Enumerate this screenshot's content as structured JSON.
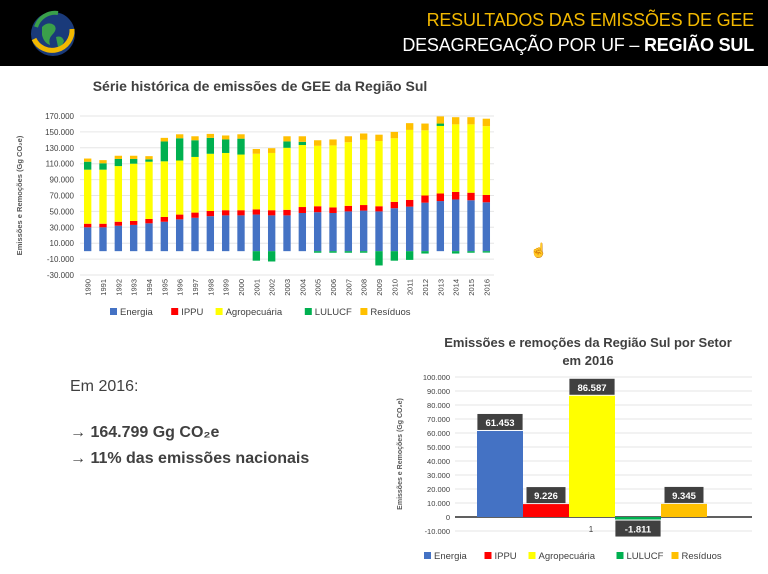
{
  "header": {
    "title_line1": "RESULTADOS DAS EMISSÕES DE GEE",
    "title_line2_prefix": "DESAGREGAÇÃO POR UF – ",
    "title_line2_bold": "REGIÃO SUL"
  },
  "summary": {
    "year_label": "Em 2016:",
    "line1": "→ 164.799 Gg CO₂e",
    "line2": "→ 11% das emissões nacionais"
  },
  "chart_data": [
    {
      "type": "bar",
      "stacked": true,
      "title": "Série histórica de emissões de GEE da Região Sul",
      "ylabel": "Emissões e Remoções (Gg CO₂e)",
      "xlabel": "",
      "ylim": [
        -30000,
        170000
      ],
      "yticks": [
        "-30.000",
        "-10.000",
        "10.000",
        "30.000",
        "50.000",
        "70.000",
        "90.000",
        "110.000",
        "130.000",
        "150.000",
        "170.000"
      ],
      "categories": [
        "1990",
        "1991",
        "1992",
        "1993",
        "1994",
        "1995",
        "1996",
        "1997",
        "1998",
        "1999",
        "2000",
        "2001",
        "2002",
        "2003",
        "2004",
        "2005",
        "2006",
        "2007",
        "2008",
        "2009",
        "2010",
        "2011",
        "2012",
        "2013",
        "2014",
        "2015",
        "2016"
      ],
      "series": [
        {
          "name": "Energia",
          "color": "#4472c4",
          "values": [
            30000,
            30000,
            32000,
            33000,
            35000,
            37000,
            40000,
            42000,
            44000,
            45000,
            45000,
            46000,
            45000,
            45000,
            48000,
            49000,
            48000,
            50000,
            51000,
            50000,
            54000,
            56000,
            61000,
            63000,
            65000,
            64000,
            61453
          ]
        },
        {
          "name": "IPPU",
          "color": "#ff0000",
          "values": [
            4500,
            4500,
            5000,
            5000,
            5500,
            6000,
            6000,
            6500,
            6500,
            6500,
            6500,
            6500,
            6500,
            7000,
            7500,
            7500,
            7000,
            7000,
            7000,
            6500,
            8000,
            8500,
            9000,
            9500,
            9500,
            9500,
            9226
          ]
        },
        {
          "name": "Agropecuária",
          "color": "#ffff00",
          "values": [
            68000,
            68000,
            70000,
            72000,
            72000,
            70000,
            68000,
            70000,
            72000,
            72000,
            70000,
            70000,
            72000,
            78000,
            78000,
            76000,
            78000,
            80000,
            82000,
            82000,
            80000,
            88000,
            82000,
            85000,
            85000,
            86000,
            86587
          ]
        },
        {
          "name": "LULUCF",
          "color": "#00b050",
          "values": [
            10000,
            8000,
            9000,
            6000,
            3000,
            25000,
            28000,
            21000,
            20000,
            17000,
            20000,
            -12000,
            -13000,
            8000,
            4000,
            -2000,
            -2000,
            -2000,
            -2000,
            -18000,
            -12000,
            -11000,
            -3000,
            3000,
            -3000,
            -2000,
            -1811
          ]
        },
        {
          "name": "Resíduos",
          "color": "#ffc000",
          "values": [
            4000,
            4000,
            4000,
            4000,
            4000,
            4500,
            5000,
            5000,
            5000,
            5000,
            5500,
            6000,
            6000,
            6500,
            7000,
            7000,
            7500,
            7500,
            8000,
            8000,
            8000,
            8500,
            8500,
            9000,
            9000,
            9000,
            9345
          ]
        }
      ],
      "legend": "bottom"
    },
    {
      "type": "bar",
      "title": "Emissões e remoções da Região Sul por Setor em 2016",
      "ylabel": "Emissões e Remoções (Gg CO₂e)",
      "xlabel": "1",
      "ylim": [
        -10000,
        100000
      ],
      "yticks": [
        "-10.000",
        "0",
        "10.000",
        "20.000",
        "30.000",
        "40.000",
        "50.000",
        "60.000",
        "70.000",
        "80.000",
        "90.000",
        "100.000"
      ],
      "categories": [
        "Energia",
        "IPPU",
        "Agropecuária",
        "LULUCF",
        "Resíduos"
      ],
      "values": [
        61453,
        9226,
        86587,
        -1811,
        9345
      ],
      "data_labels": [
        "61.453",
        "9.226",
        "86.587",
        "-1.811",
        "9.345"
      ],
      "colors": [
        "#4472c4",
        "#ff0000",
        "#ffff00",
        "#00b050",
        "#ffc000"
      ],
      "legend": "bottom"
    }
  ]
}
